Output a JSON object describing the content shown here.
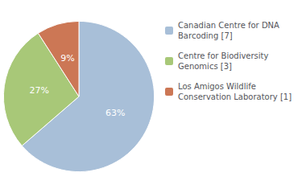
{
  "chart_data": {
    "type": "pie",
    "categories": [
      "Canadian Centre for DNA\nBarcoding [7]",
      "Centre for Biodiversity\nGenomics [3]",
      "Los Amigos Wildlife\nConservation Laboratory [1]"
    ],
    "values": [
      63,
      27,
      9
    ],
    "value_labels": [
      "63%",
      "27%",
      "9%"
    ],
    "colors": [
      "#a8bfd8",
      "#a8c878",
      "#cc7755"
    ],
    "data_labels": true,
    "legend": "right"
  }
}
